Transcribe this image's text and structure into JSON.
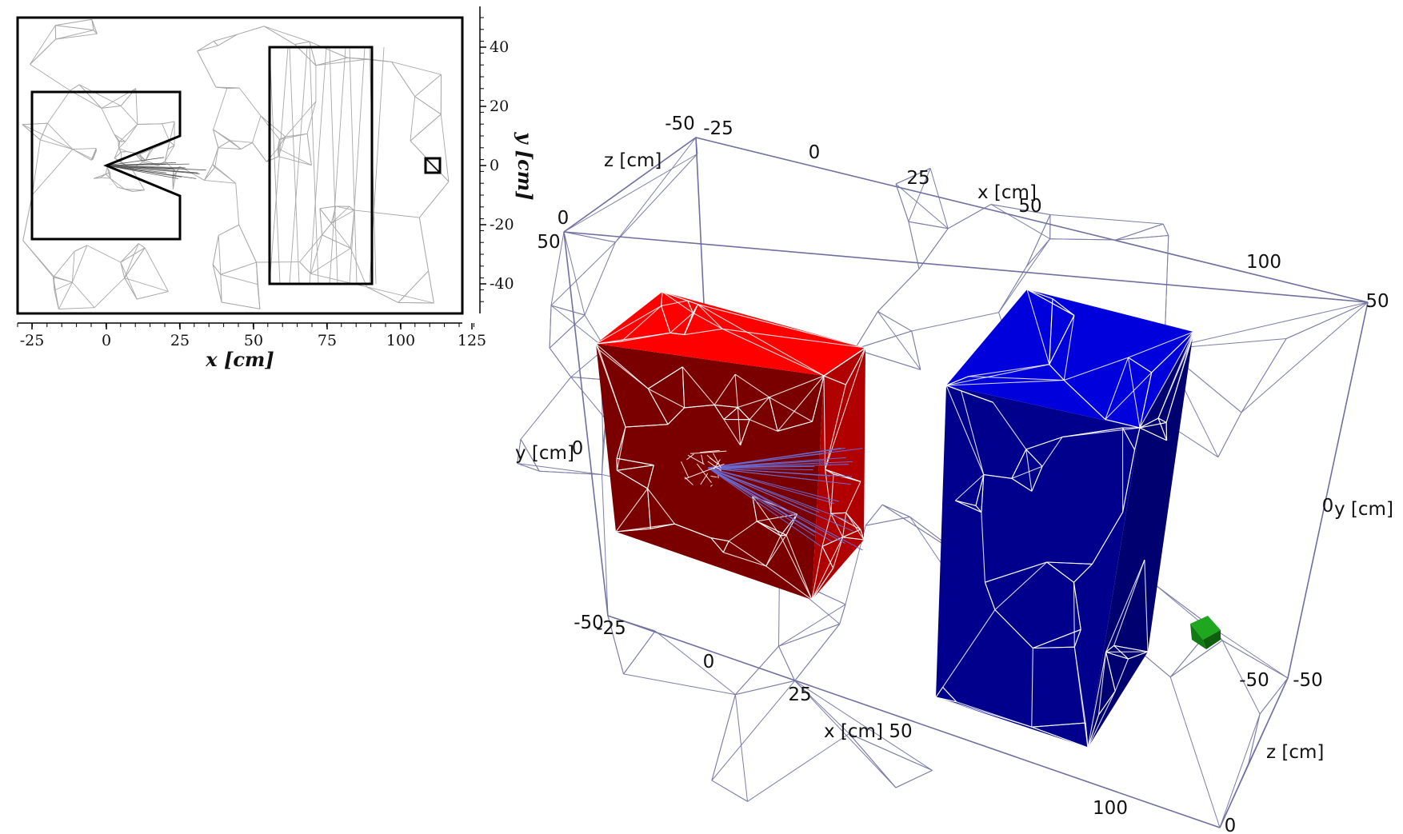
{
  "left_panel": {
    "x_axis_label": "x [cm]",
    "y_axis_label": "y [cm]",
    "x_ticks": [
      "-25",
      "0",
      "25",
      "50",
      "75",
      "100",
      "125"
    ],
    "y_ticks": [
      "40",
      "20",
      "0",
      "-20",
      "-40"
    ]
  },
  "right_panel": {
    "z_top_label": "z [cm]",
    "x_top_label": "x [cm]",
    "y_left_label": "y [cm]",
    "y_right_label": "y [cm]",
    "x_bottom_label": "x [cm]",
    "z_right_label": "z [cm]",
    "z_top_ticks": [
      "-50",
      "0"
    ],
    "x_top_ticks": [
      "-25",
      "0",
      "25",
      "50",
      "100"
    ],
    "y_left_ticks": [
      "50",
      "0",
      "-50"
    ],
    "y_right_ticks": [
      "50",
      "0",
      "-50"
    ],
    "x_bottom_ticks": [
      "-25",
      "0",
      "25",
      "50",
      "100"
    ],
    "z_right_ticks": [
      "-50",
      "0"
    ]
  },
  "colors": {
    "red_block_front": "#7a0000",
    "red_block_top": "#ff0000",
    "red_block_side": "#b00000",
    "blue_block_front": "#00008c",
    "blue_block_top": "#0000dd",
    "blue_block_side": "#000070",
    "green_cube": "#1fa81f",
    "mesh_3d": "#7d7ea8",
    "mesh_2d": "#a8a8a8"
  }
}
